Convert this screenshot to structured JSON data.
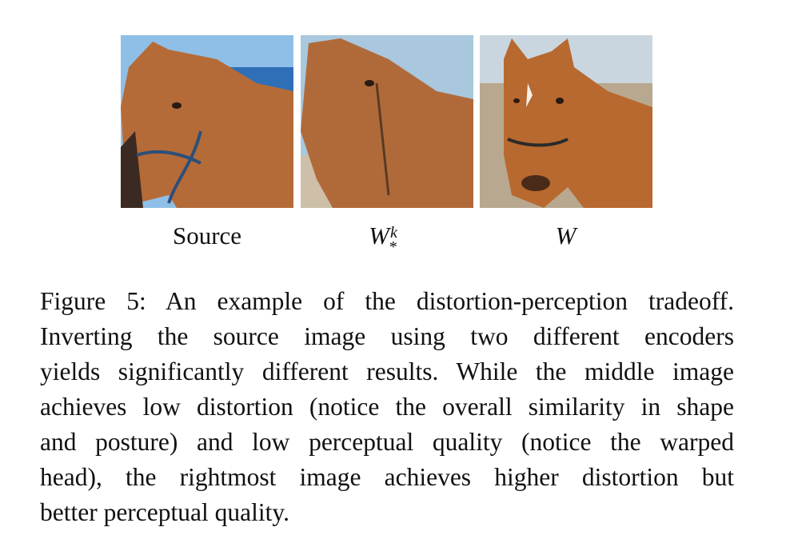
{
  "figure": {
    "panels": [
      {
        "label": "Source",
        "image_icon": "horse-source-photo"
      },
      {
        "label_main": "W",
        "label_sup": "k",
        "label_sub": "*",
        "image_icon": "horse-wk-inversion-photo"
      },
      {
        "label_main": "W",
        "image_icon": "horse-w-inversion-photo"
      }
    ],
    "caption": {
      "lines": [
        "Figure 5: An example of the distortion-perception tradeoff.",
        "Inverting the source image using two different encoders",
        "yields significantly different results. While the middle image",
        "achieves low distortion (notice the overall similarity in shape",
        "and posture) and low perceptual quality (notice the warped",
        "head), the rightmost image achieves higher distortion but",
        "better perceptual quality."
      ]
    }
  },
  "colors": {
    "horse": "#b06a3a",
    "sky": "#8fbfe6",
    "ground": "#cdbfa8"
  }
}
